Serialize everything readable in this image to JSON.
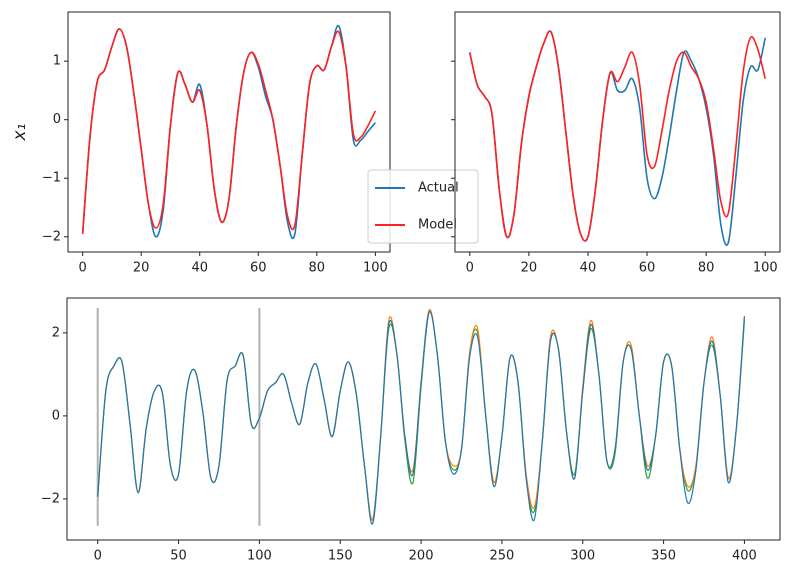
{
  "chart_data": [
    {
      "type": "line",
      "ylabel": "x₁",
      "legend": "center",
      "x": [
        0,
        2.5,
        5,
        7.5,
        10,
        12.5,
        15,
        17.5,
        20,
        22.5,
        25,
        27.5,
        30,
        32.5,
        35,
        37.5,
        40,
        42.5,
        45,
        47.5,
        50,
        52.5,
        55,
        57.5,
        60,
        62.5,
        65,
        67.5,
        70,
        72.5,
        75,
        77.5,
        80,
        82.5,
        85,
        87.5,
        90,
        92.5,
        95,
        97.5,
        100
      ],
      "series": [
        {
          "name": "Actual",
          "color": "#1f77b4",
          "values": [
            -1.95,
            -0.3,
            0.65,
            0.85,
            1.25,
            1.55,
            1.25,
            0.45,
            -0.5,
            -1.45,
            -2.0,
            -1.55,
            -0.1,
            0.8,
            0.6,
            0.3,
            0.6,
            -0.1,
            -1.2,
            -1.75,
            -1.35,
            -0.1,
            0.8,
            1.15,
            0.9,
            0.4,
            0.0,
            -0.8,
            -1.75,
            -1.95,
            -0.6,
            0.6,
            0.92,
            0.85,
            1.25,
            1.6,
            0.9,
            -0.35,
            -0.35,
            -0.2,
            -0.05
          ]
        },
        {
          "name": "Model",
          "color": "#ff2020",
          "values": [
            -1.95,
            -0.3,
            0.65,
            0.85,
            1.25,
            1.55,
            1.25,
            0.45,
            -0.5,
            -1.45,
            -1.85,
            -1.45,
            -0.1,
            0.8,
            0.6,
            0.3,
            0.5,
            -0.1,
            -1.2,
            -1.75,
            -1.35,
            -0.1,
            0.8,
            1.15,
            0.95,
            0.5,
            0.0,
            -0.8,
            -1.65,
            -1.8,
            -0.6,
            0.6,
            0.92,
            0.85,
            1.25,
            1.5,
            0.9,
            -0.25,
            -0.3,
            -0.1,
            0.15
          ]
        }
      ],
      "xlim": [
        -5,
        105
      ],
      "xticks": [
        0,
        20,
        40,
        60,
        80,
        100
      ],
      "ylim": [
        -2.26,
        1.84
      ],
      "yticks": [
        {
          "value": -2,
          "label": "−2"
        },
        {
          "value": -1,
          "label": "−1"
        },
        0,
        1
      ],
      "ytick_labels": true
    },
    {
      "type": "line",
      "x": [
        0,
        2.5,
        5,
        7.5,
        10,
        12.5,
        15,
        17.5,
        20,
        22.5,
        25,
        27.5,
        30,
        32.5,
        35,
        37.5,
        40,
        42.5,
        45,
        47.5,
        50,
        52.5,
        55,
        57.5,
        60,
        62.5,
        65,
        67.5,
        70,
        72.5,
        75,
        77.5,
        80,
        82.5,
        85,
        87.5,
        90,
        92.5,
        95,
        97.5,
        100
      ],
      "series": [
        {
          "color": "#1f77b4",
          "values": [
            1.15,
            0.6,
            0.4,
            0.1,
            -1.2,
            -2.0,
            -1.6,
            -0.4,
            0.4,
            0.9,
            1.3,
            1.5,
            0.9,
            -0.2,
            -1.3,
            -1.95,
            -2.0,
            -1.2,
            0.0,
            0.8,
            0.5,
            0.5,
            0.7,
            0.2,
            -1.0,
            -1.35,
            -1.0,
            -0.3,
            0.5,
            1.15,
            1.0,
            0.7,
            0.2,
            -0.6,
            -1.8,
            -2.1,
            -1.0,
            0.3,
            0.9,
            0.85,
            1.4
          ]
        },
        {
          "color": "#ff2020",
          "values": [
            1.15,
            0.6,
            0.4,
            0.1,
            -1.2,
            -2.0,
            -1.6,
            -0.4,
            0.4,
            0.9,
            1.3,
            1.5,
            0.9,
            -0.2,
            -1.3,
            -1.95,
            -2.0,
            -1.2,
            0.0,
            0.8,
            0.65,
            0.9,
            1.15,
            0.6,
            -0.6,
            -0.8,
            -0.2,
            0.5,
            1.0,
            1.15,
            0.9,
            0.7,
            0.3,
            -0.5,
            -1.4,
            -1.6,
            -0.5,
            0.8,
            1.4,
            1.2,
            0.7
          ]
        }
      ],
      "xlim": [
        -5,
        105
      ],
      "xticks": [
        0,
        20,
        40,
        60,
        80,
        100
      ],
      "ylim": [
        -2.26,
        1.84
      ],
      "yticks": [
        -2,
        -1,
        0,
        1
      ],
      "ytick_labels": false
    },
    {
      "type": "line",
      "x": [
        0,
        5,
        10,
        15,
        20,
        25,
        30,
        35,
        40,
        45,
        50,
        55,
        60,
        65,
        70,
        75,
        80,
        85,
        90,
        95,
        100,
        105,
        110,
        115,
        120,
        125,
        130,
        135,
        140,
        145,
        150,
        155,
        160,
        165,
        170,
        175,
        180,
        185,
        190,
        195,
        200,
        205,
        210,
        215,
        220,
        225,
        230,
        235,
        240,
        245,
        250,
        255,
        260,
        265,
        270,
        275,
        280,
        285,
        290,
        295,
        300,
        305,
        310,
        315,
        320,
        325,
        330,
        335,
        340,
        345,
        350,
        355,
        360,
        365,
        370,
        375,
        380,
        385,
        390,
        395,
        400
      ],
      "series": [
        {
          "color": "#2ca02c",
          "values": [
            -1.95,
            0.6,
            1.2,
            1.3,
            -0.2,
            -1.85,
            -0.3,
            0.6,
            0.55,
            -1.2,
            -1.4,
            0.6,
            1.1,
            0.1,
            -1.5,
            -1.2,
            0.85,
            1.2,
            1.45,
            -0.2,
            -0.05,
            0.6,
            0.8,
            1.0,
            0.3,
            -0.2,
            0.8,
            1.25,
            0.4,
            -0.5,
            0.6,
            1.3,
            0.5,
            -1.2,
            -2.5,
            -0.5,
            2.1,
            1.5,
            -0.6,
            -1.6,
            0.7,
            2.5,
            1.5,
            -0.6,
            -1.3,
            -0.8,
            1.5,
            2.0,
            0.0,
            -1.6,
            -0.5,
            1.4,
            0.8,
            -1.5,
            -2.3,
            -0.6,
            1.8,
            1.6,
            -0.4,
            -1.4,
            0.6,
            2.1,
            1.0,
            -1.1,
            -0.9,
            1.3,
            1.6,
            0.0,
            -1.5,
            -0.5,
            1.3,
            1.2,
            -0.8,
            -1.8,
            -1.2,
            0.8,
            1.7,
            0.5,
            -1.5,
            -0.3,
            2.3
          ]
        },
        {
          "color": "#ff7f0e",
          "values": [
            -1.95,
            0.6,
            1.2,
            1.3,
            -0.2,
            -1.85,
            -0.3,
            0.6,
            0.55,
            -1.2,
            -1.4,
            0.6,
            1.1,
            0.1,
            -1.5,
            -1.2,
            0.85,
            1.2,
            1.45,
            -0.2,
            -0.05,
            0.6,
            0.8,
            1.0,
            0.3,
            -0.2,
            0.8,
            1.25,
            0.4,
            -0.5,
            0.6,
            1.3,
            0.5,
            -1.2,
            -2.5,
            -0.5,
            2.3,
            1.5,
            -0.5,
            -1.3,
            0.8,
            2.55,
            1.5,
            -0.6,
            -1.2,
            -0.8,
            1.5,
            2.1,
            0.0,
            -1.6,
            -0.5,
            1.4,
            0.8,
            -1.4,
            -2.2,
            -0.6,
            1.9,
            1.6,
            -0.4,
            -1.5,
            0.7,
            2.3,
            1.0,
            -1.1,
            -0.8,
            1.3,
            1.7,
            0.0,
            -1.2,
            -0.5,
            1.3,
            1.2,
            -0.8,
            -1.7,
            -1.2,
            0.8,
            1.9,
            0.5,
            -1.5,
            -0.3,
            2.4
          ]
        },
        {
          "color": "#1f77b4",
          "values": [
            -1.95,
            0.6,
            1.2,
            1.3,
            -0.2,
            -1.85,
            -0.3,
            0.6,
            0.55,
            -1.2,
            -1.4,
            0.6,
            1.1,
            0.1,
            -1.5,
            -1.2,
            0.85,
            1.2,
            1.45,
            -0.2,
            -0.05,
            0.6,
            0.8,
            1.0,
            0.3,
            -0.2,
            0.8,
            1.25,
            0.4,
            -0.5,
            0.6,
            1.3,
            0.5,
            -1.2,
            -2.6,
            -0.5,
            2.2,
            1.5,
            -0.5,
            -1.4,
            0.8,
            2.5,
            1.5,
            -0.6,
            -1.4,
            -0.8,
            1.4,
            1.9,
            0.0,
            -1.7,
            -0.5,
            1.4,
            0.8,
            -1.5,
            -2.5,
            -0.6,
            1.8,
            1.6,
            -0.4,
            -1.5,
            0.6,
            2.2,
            1.0,
            -1.1,
            -0.8,
            1.3,
            1.6,
            0.0,
            -1.3,
            -0.5,
            1.3,
            1.2,
            -0.8,
            -2.1,
            -1.3,
            0.8,
            1.8,
            0.5,
            -1.6,
            -0.3,
            2.4
          ]
        }
      ],
      "vlines": {
        "x": [
          0,
          100
        ],
        "ymin": -2.65,
        "ymax": 2.6,
        "color": "#b0b0b0"
      },
      "xlim": [
        -19,
        422
      ],
      "xticks": [
        0,
        50,
        100,
        150,
        200,
        250,
        300,
        350,
        400
      ],
      "ylim": [
        -2.99,
        2.84
      ],
      "yticks": [
        {
          "value": -2,
          "label": "−2"
        },
        0,
        2
      ],
      "ytick_labels": true
    }
  ]
}
